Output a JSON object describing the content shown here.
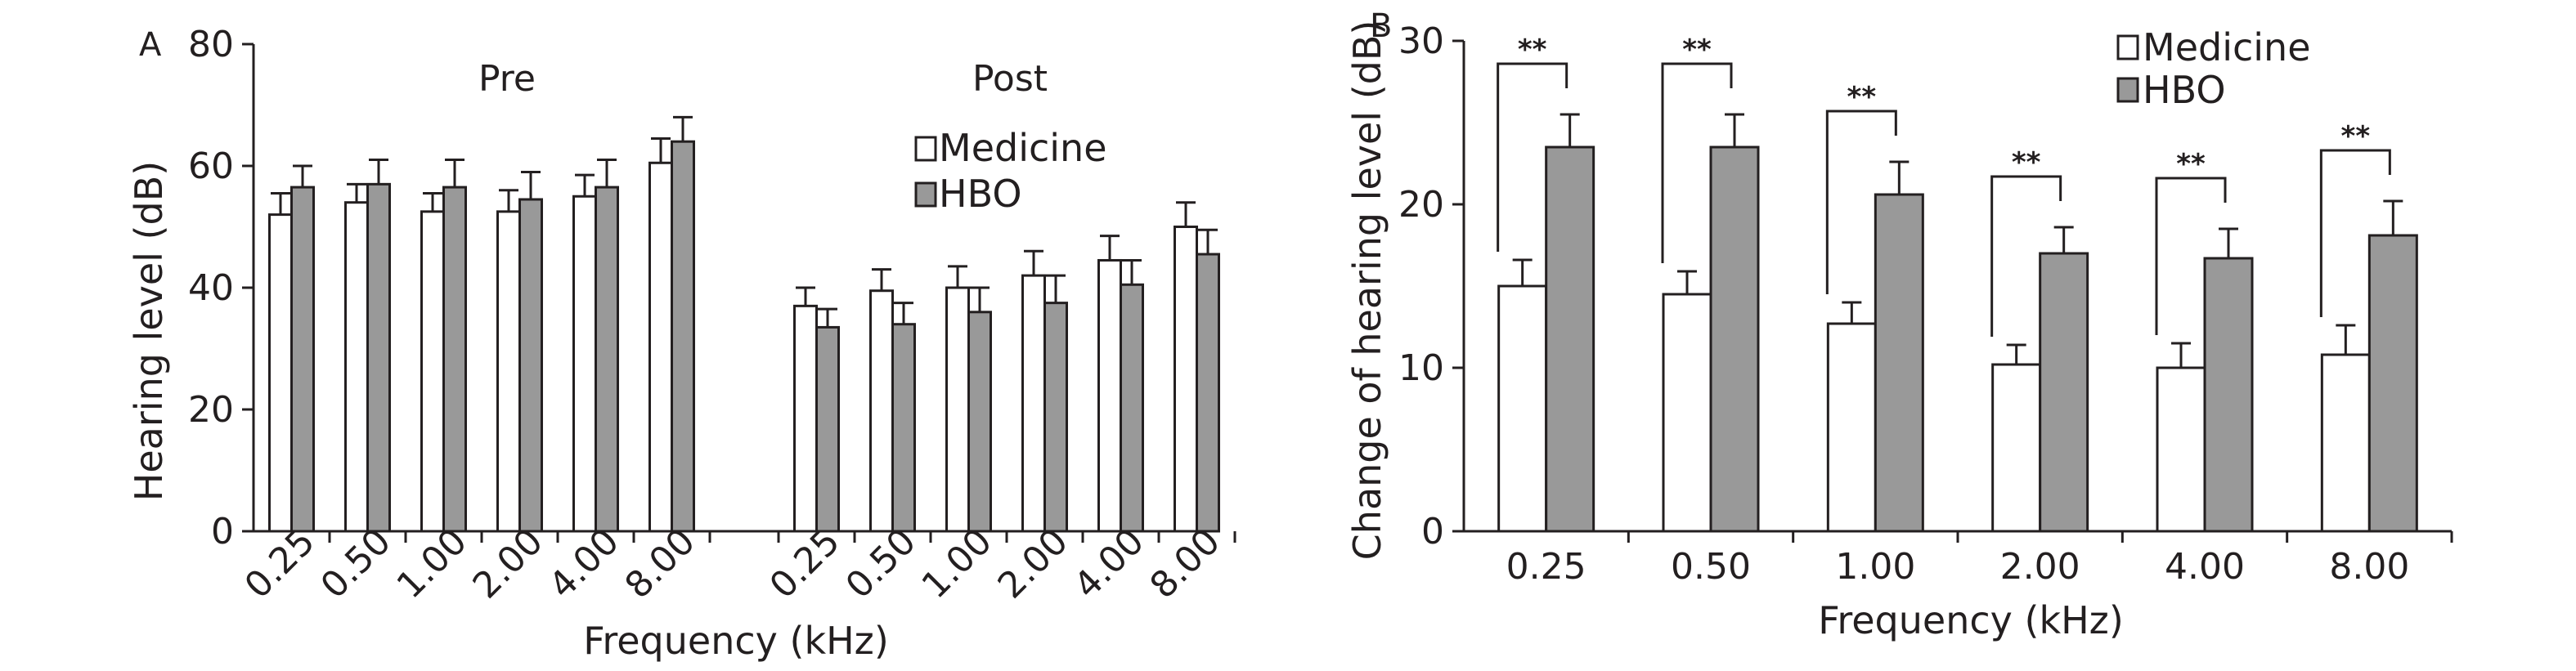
{
  "colors": {
    "medicine": "#ffffff",
    "hbo": "#999999",
    "stroke": "#231f20"
  },
  "chart_data": [
    {
      "panel": "A",
      "type": "bar",
      "ylabel": "Hearing level (dB)",
      "xlabel": "Frequency (kHz)",
      "ylim": [
        0,
        80
      ],
      "yticks": [
        "0",
        "20",
        "40",
        "60",
        "80"
      ],
      "grid": false,
      "legend_position": "top-right",
      "groups": [
        {
          "label": "Pre",
          "categories": [
            "0.25",
            "0.50",
            "1.00",
            "2.00",
            "4.00",
            "8.00"
          ],
          "series": [
            {
              "name": "Medicine",
              "values": [
                52,
                54,
                52.5,
                52.5,
                55,
                60.5
              ],
              "errors": [
                3.5,
                3,
                3,
                3.5,
                3.5,
                4
              ]
            },
            {
              "name": "HBO",
              "values": [
                56.5,
                57,
                56.5,
                54.5,
                56.5,
                64
              ],
              "errors": [
                3.5,
                4,
                4.5,
                4.5,
                4.5,
                4
              ]
            }
          ]
        },
        {
          "label": "Post",
          "categories": [
            "0.25",
            "0.50",
            "1.00",
            "2.00",
            "4.00",
            "8.00"
          ],
          "series": [
            {
              "name": "Medicine",
              "values": [
                37,
                39.5,
                40,
                42,
                44.5,
                50
              ],
              "errors": [
                3,
                3.5,
                3.5,
                4,
                4,
                4
              ]
            },
            {
              "name": "HBO",
              "values": [
                33.5,
                34,
                36,
                37.5,
                40.5,
                45.5
              ],
              "errors": [
                3,
                3.5,
                4,
                4.5,
                4,
                4
              ]
            }
          ]
        }
      ]
    },
    {
      "panel": "B",
      "type": "bar",
      "ylabel": "Change of hearing level (dB)",
      "xlabel": "Frequency (kHz)",
      "ylim": [
        0,
        30
      ],
      "yticks": [
        "0",
        "10",
        "20",
        "30"
      ],
      "grid": false,
      "legend_position": "top-right",
      "categories": [
        "0.25",
        "0.50",
        "1.00",
        "2.00",
        "4.00",
        "8.00"
      ],
      "series": [
        {
          "name": "Medicine",
          "values": [
            15,
            14.5,
            12.7,
            10.2,
            10,
            10.8
          ],
          "errors": [
            1.6,
            1.4,
            1.3,
            1.2,
            1.5,
            1.8
          ]
        },
        {
          "name": "HBO",
          "values": [
            23.5,
            23.5,
            20.6,
            17,
            16.7,
            18.1
          ],
          "errors": [
            2,
            2,
            2,
            1.6,
            1.8,
            2.1
          ]
        }
      ],
      "significance": [
        "**",
        "**",
        "**",
        "**",
        "**",
        "**"
      ]
    }
  ]
}
